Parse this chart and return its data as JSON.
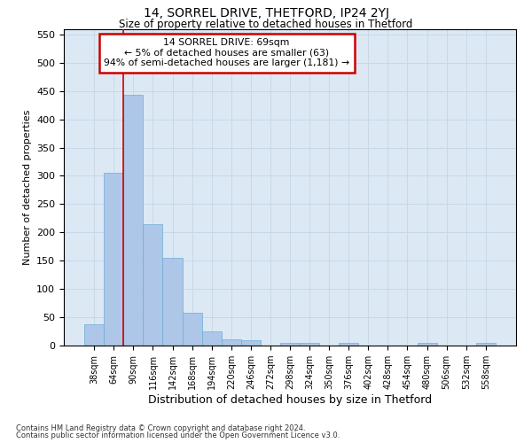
{
  "title_line1": "14, SORREL DRIVE, THETFORD, IP24 2YJ",
  "title_line2": "Size of property relative to detached houses in Thetford",
  "xlabel": "Distribution of detached houses by size in Thetford",
  "ylabel": "Number of detached properties",
  "footer_line1": "Contains HM Land Registry data © Crown copyright and database right 2024.",
  "footer_line2": "Contains public sector information licensed under the Open Government Licence v3.0.",
  "bin_labels": [
    "38sqm",
    "64sqm",
    "90sqm",
    "116sqm",
    "142sqm",
    "168sqm",
    "194sqm",
    "220sqm",
    "246sqm",
    "272sqm",
    "298sqm",
    "324sqm",
    "350sqm",
    "376sqm",
    "402sqm",
    "428sqm",
    "454sqm",
    "480sqm",
    "506sqm",
    "532sqm",
    "558sqm"
  ],
  "bar_values": [
    37,
    305,
    443,
    215,
    155,
    58,
    25,
    11,
    9,
    0,
    5,
    5,
    0,
    5,
    0,
    0,
    0,
    5,
    0,
    0,
    5
  ],
  "bar_color": "#aec6e8",
  "bar_edge_color": "#6baed6",
  "vline_x_idx": 1.5,
  "vline_color": "#cc0000",
  "ylim": [
    0,
    560
  ],
  "yticks": [
    0,
    50,
    100,
    150,
    200,
    250,
    300,
    350,
    400,
    450,
    500,
    550
  ],
  "annotation_line1": "14 SORREL DRIVE: 69sqm",
  "annotation_line2": "← 5% of detached houses are smaller (63)",
  "annotation_line3": "94% of semi-detached houses are larger (1,181) →",
  "annotation_box_color": "#ffffff",
  "annotation_box_edge": "#cc0000",
  "grid_color": "#c8d8e8",
  "background_color": "#dce9f5"
}
